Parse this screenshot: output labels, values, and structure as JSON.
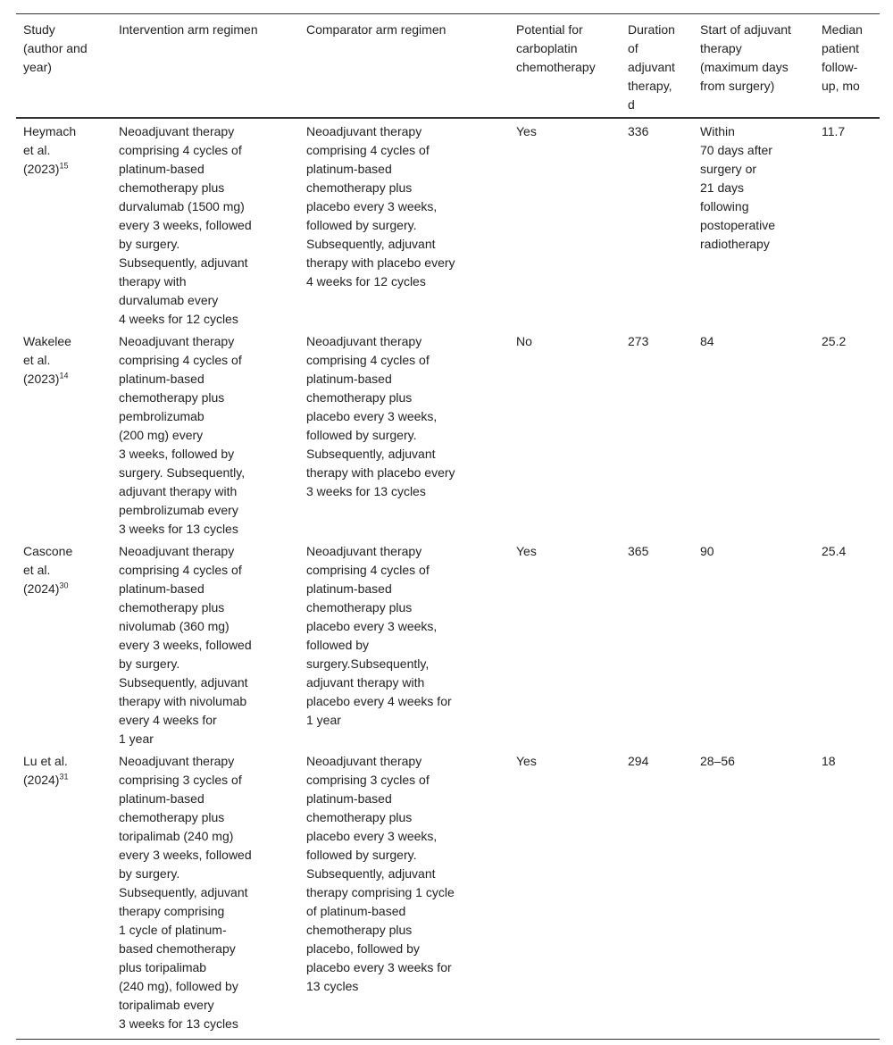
{
  "headers": [
    "Study\n(author and\nyear)",
    "Intervention arm regimen",
    "Comparator arm regimen",
    "Potential for\ncarboplatin\nchemotherapy",
    "Duration\nof\nadjuvant\ntherapy,\nd",
    "Start of adjuvant\ntherapy\n(maximum days\nfrom surgery)",
    "Median\npatient\nfollow-\nup, mo"
  ],
  "rows": [
    {
      "study": "Heymach\net al.\n(2023)",
      "ref": "15",
      "intervention": "Neoadjuvant therapy\ncomprising 4 cycles of\nplatinum-based\nchemotherapy plus\ndurvalumab (1500 mg)\nevery 3 weeks, followed\nby surgery.\nSubsequently, adjuvant\ntherapy with\ndurvalumab every\n4 weeks for 12 cycles",
      "comparator": "Neoadjuvant therapy\ncomprising 4 cycles of\nplatinum-based\nchemotherapy plus\nplacebo every 3 weeks,\nfollowed by surgery.\nSubsequently, adjuvant\ntherapy with placebo every\n4 weeks for 12 cycles",
      "carboplatin": "Yes",
      "duration": "336",
      "start": "Within\n70 days after\nsurgery or\n21 days\nfollowing\npostoperative\nradiotherapy",
      "followup": "11.7"
    },
    {
      "study": "Wakelee\net al.\n(2023)",
      "ref": "14",
      "intervention": "Neoadjuvant therapy\ncomprising 4 cycles of\nplatinum-based\nchemotherapy plus\npembrolizumab\n(200 mg) every\n3 weeks, followed by\nsurgery. Subsequently,\nadjuvant therapy with\npembrolizumab every\n3 weeks for 13 cycles",
      "comparator": "Neoadjuvant therapy\ncomprising 4 cycles of\nplatinum-based\nchemotherapy plus\nplacebo every 3 weeks,\nfollowed by surgery.\nSubsequently, adjuvant\ntherapy with placebo every\n3 weeks for 13 cycles",
      "carboplatin": "No",
      "duration": "273",
      "start": "84",
      "followup": "25.2"
    },
    {
      "study": "Cascone\net al.\n(2024)",
      "ref": "30",
      "intervention": "Neoadjuvant therapy\ncomprising 4 cycles of\nplatinum-based\nchemotherapy plus\nnivolumab (360 mg)\nevery 3 weeks, followed\nby surgery.\nSubsequently, adjuvant\ntherapy with nivolumab\nevery 4 weeks for\n1 year",
      "comparator": "Neoadjuvant therapy\ncomprising 4 cycles of\nplatinum-based\nchemotherapy plus\nplacebo every 3 weeks,\nfollowed by\nsurgery.Subsequently,\nadjuvant therapy with\nplacebo every 4 weeks for\n1 year",
      "carboplatin": "Yes",
      "duration": "365",
      "start": "90",
      "followup": "25.4"
    },
    {
      "study": "Lu et al.\n(2024)",
      "ref": "31",
      "intervention": "Neoadjuvant therapy\ncomprising 3 cycles of\nplatinum-based\nchemotherapy plus\ntoripalimab (240 mg)\nevery 3 weeks, followed\nby surgery.\nSubsequently, adjuvant\ntherapy comprising\n1 cycle of platinum-\nbased chemotherapy\nplus toripalimab\n(240 mg), followed by\ntoripalimab every\n3 weeks for 13 cycles",
      "comparator": "Neoadjuvant therapy\ncomprising 3 cycles of\nplatinum-based\nchemotherapy plus\nplacebo every 3 weeks,\nfollowed by surgery.\nSubsequently, adjuvant\ntherapy comprising 1 cycle\nof platinum-based\nchemotherapy plus\nplacebo, followed by\nplacebo every 3 weeks for\n13 cycles",
      "carboplatin": "Yes",
      "duration": "294",
      "start": "28–56",
      "followup": "18"
    }
  ]
}
